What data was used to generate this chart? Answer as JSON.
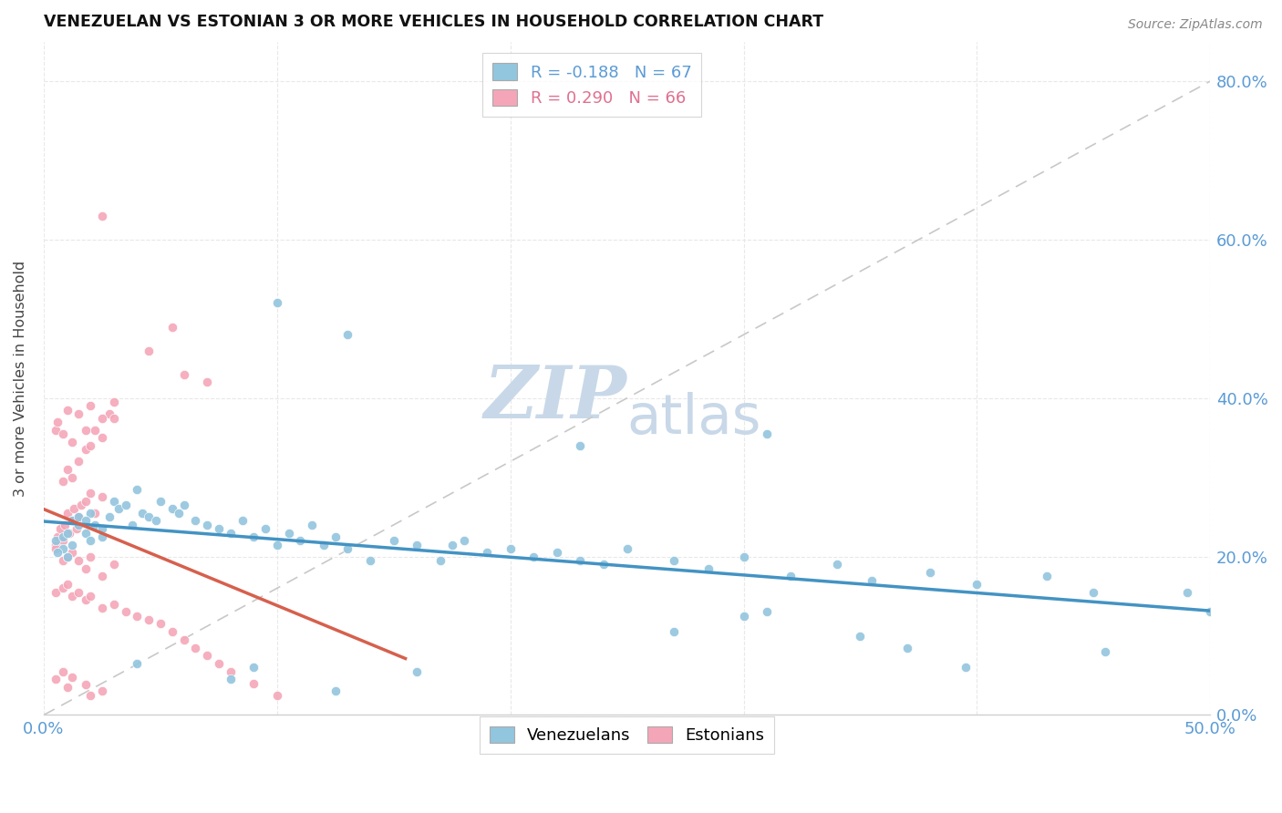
{
  "title": "VENEZUELAN VS ESTONIAN 3 OR MORE VEHICLES IN HOUSEHOLD CORRELATION CHART",
  "source": "Source: ZipAtlas.com",
  "ylabel": "3 or more Vehicles in Household",
  "ylabel_right_ticks": [
    "0.0%",
    "20.0%",
    "40.0%",
    "60.0%",
    "80.0%"
  ],
  "xmin": 0.0,
  "xmax": 0.5,
  "ymin": 0.0,
  "ymax": 0.85,
  "venezuelan_R": -0.188,
  "venezuelan_N": 67,
  "estonian_R": 0.29,
  "estonian_N": 66,
  "venezuelan_color": "#92c5de",
  "estonian_color": "#f4a6b8",
  "venezuelan_line_color": "#4393c3",
  "estonian_line_color": "#d6604d",
  "diagonal_color": "#c8c8c8",
  "background_color": "#ffffff",
  "watermark_zip": "ZIP",
  "watermark_atlas": "atlas",
  "watermark_color_zip": "#c8d8e8",
  "watermark_color_atlas": "#c8d8e8",
  "venezuelan_x": [
    0.005,
    0.008,
    0.01,
    0.012,
    0.015,
    0.01,
    0.008,
    0.012,
    0.006,
    0.015,
    0.018,
    0.02,
    0.022,
    0.025,
    0.02,
    0.018,
    0.025,
    0.03,
    0.032,
    0.028,
    0.035,
    0.038,
    0.04,
    0.042,
    0.045,
    0.048,
    0.05,
    0.055,
    0.058,
    0.06,
    0.065,
    0.07,
    0.075,
    0.08,
    0.085,
    0.09,
    0.095,
    0.1,
    0.105,
    0.11,
    0.115,
    0.12,
    0.125,
    0.13,
    0.14,
    0.15,
    0.16,
    0.17,
    0.175,
    0.18,
    0.19,
    0.2,
    0.21,
    0.22,
    0.23,
    0.24,
    0.25,
    0.27,
    0.285,
    0.3,
    0.32,
    0.34,
    0.355,
    0.38,
    0.4,
    0.43,
    0.45
  ],
  "venezuelan_y": [
    0.22,
    0.225,
    0.23,
    0.215,
    0.24,
    0.2,
    0.21,
    0.245,
    0.205,
    0.25,
    0.23,
    0.255,
    0.24,
    0.235,
    0.22,
    0.245,
    0.225,
    0.27,
    0.26,
    0.25,
    0.265,
    0.24,
    0.285,
    0.255,
    0.25,
    0.245,
    0.27,
    0.26,
    0.255,
    0.265,
    0.245,
    0.24,
    0.235,
    0.23,
    0.245,
    0.225,
    0.235,
    0.215,
    0.23,
    0.22,
    0.24,
    0.215,
    0.225,
    0.21,
    0.195,
    0.22,
    0.215,
    0.195,
    0.215,
    0.22,
    0.205,
    0.21,
    0.2,
    0.205,
    0.195,
    0.19,
    0.21,
    0.195,
    0.185,
    0.2,
    0.175,
    0.19,
    0.17,
    0.18,
    0.165,
    0.175,
    0.155
  ],
  "venezuelan_extra_high": [
    [
      0.1,
      0.52
    ],
    [
      0.13,
      0.48
    ],
    [
      0.23,
      0.34
    ],
    [
      0.31,
      0.355
    ]
  ],
  "venezuelan_extra_low": [
    [
      0.04,
      0.065
    ],
    [
      0.08,
      0.045
    ],
    [
      0.09,
      0.06
    ],
    [
      0.125,
      0.03
    ],
    [
      0.16,
      0.055
    ],
    [
      0.27,
      0.105
    ],
    [
      0.3,
      0.125
    ],
    [
      0.31,
      0.13
    ],
    [
      0.35,
      0.1
    ],
    [
      0.37,
      0.085
    ],
    [
      0.395,
      0.06
    ],
    [
      0.455,
      0.08
    ],
    [
      0.49,
      0.155
    ],
    [
      0.5,
      0.13
    ]
  ],
  "estonian_x": [
    0.005,
    0.006,
    0.007,
    0.008,
    0.009,
    0.01,
    0.011,
    0.012,
    0.013,
    0.014,
    0.015,
    0.016,
    0.018,
    0.02,
    0.022,
    0.025,
    0.008,
    0.01,
    0.012,
    0.015,
    0.018,
    0.02,
    0.022,
    0.025,
    0.028,
    0.03,
    0.005,
    0.006,
    0.008,
    0.01,
    0.012,
    0.015,
    0.018,
    0.02,
    0.025,
    0.03,
    0.005,
    0.008,
    0.01,
    0.012,
    0.015,
    0.018,
    0.02,
    0.025,
    0.03,
    0.005,
    0.008,
    0.01,
    0.012,
    0.015,
    0.018,
    0.02,
    0.025,
    0.03,
    0.035,
    0.04,
    0.045,
    0.05,
    0.055,
    0.06,
    0.065,
    0.07,
    0.075,
    0.08,
    0.09,
    0.1
  ],
  "estonian_y": [
    0.215,
    0.225,
    0.235,
    0.22,
    0.24,
    0.255,
    0.23,
    0.245,
    0.26,
    0.235,
    0.25,
    0.265,
    0.27,
    0.28,
    0.255,
    0.275,
    0.295,
    0.31,
    0.3,
    0.32,
    0.335,
    0.34,
    0.36,
    0.35,
    0.38,
    0.375,
    0.36,
    0.37,
    0.355,
    0.385,
    0.345,
    0.38,
    0.36,
    0.39,
    0.375,
    0.395,
    0.21,
    0.195,
    0.2,
    0.205,
    0.195,
    0.185,
    0.2,
    0.175,
    0.19,
    0.155,
    0.16,
    0.165,
    0.15,
    0.155,
    0.145,
    0.15,
    0.135,
    0.14,
    0.13,
    0.125,
    0.12,
    0.115,
    0.105,
    0.095,
    0.085,
    0.075,
    0.065,
    0.055,
    0.04,
    0.025
  ],
  "estonian_extra_high": [
    [
      0.025,
      0.63
    ],
    [
      0.055,
      0.49
    ],
    [
      0.045,
      0.46
    ],
    [
      0.06,
      0.43
    ],
    [
      0.07,
      0.42
    ]
  ],
  "estonian_extra_low": [
    [
      0.005,
      0.045
    ],
    [
      0.008,
      0.055
    ],
    [
      0.01,
      0.035
    ],
    [
      0.012,
      0.048
    ],
    [
      0.018,
      0.038
    ],
    [
      0.02,
      0.025
    ],
    [
      0.025,
      0.03
    ]
  ]
}
